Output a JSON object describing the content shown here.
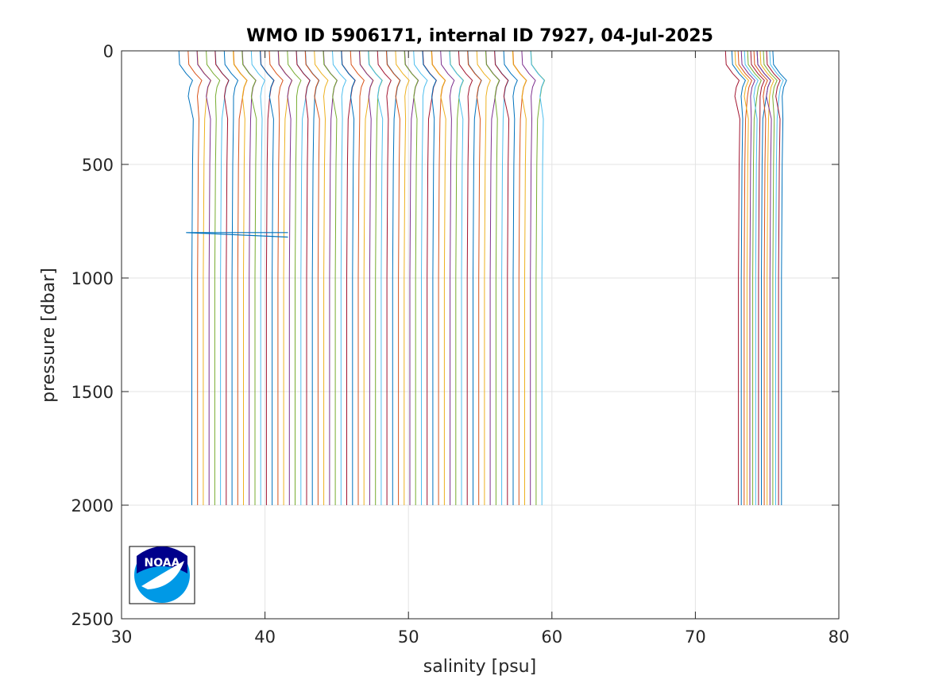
{
  "chart_data": {
    "type": "line",
    "title": "WMO ID 5906171, internal ID 7927, 04-Jul-2025",
    "xlabel": "salinity [psu]",
    "ylabel": "pressure [dbar]",
    "xlim": [
      30,
      80
    ],
    "ylim": [
      0,
      2500
    ],
    "y_reversed": true,
    "grid": true,
    "xticks": [
      30,
      40,
      50,
      60,
      70,
      80
    ],
    "yticks": [
      0,
      500,
      1000,
      1500,
      2000,
      2500
    ],
    "xtick_labels": [
      "30",
      "40",
      "50",
      "60",
      "70",
      "80"
    ],
    "ytick_labels": [
      "0",
      "500",
      "1000",
      "1500",
      "2000",
      "2500"
    ],
    "series_note": "waterfall of salinity profiles, each offset in salinity",
    "groups": [
      {
        "count": 62,
        "start_deep_salinity": 34.9,
        "step": 0.4,
        "max_pressure": 2000
      },
      {
        "count": 16,
        "start_deep_salinity": 73.0,
        "step": 0.2,
        "max_pressure": 2000
      }
    ],
    "representative_profile": {
      "pressure": [
        0,
        60,
        100,
        130,
        160,
        200,
        300,
        500,
        1000,
        1500,
        2000
      ],
      "salinity_anomaly": [
        -0.6,
        -0.55,
        -0.1,
        0.35,
        0.15,
        0.05,
        0.1,
        0.05,
        0.0,
        0.0,
        0.0
      ]
    },
    "spike": {
      "pressure": [
        800,
        820
      ],
      "salinity": [
        34.5,
        41.6
      ]
    },
    "colors": [
      "#0072bd",
      "#d95319",
      "#edb120",
      "#7e2f8e",
      "#77ac30",
      "#4dbeee",
      "#a2142f"
    ]
  },
  "logo": {
    "text": "NOAA",
    "colors": {
      "navy": "#00008b",
      "blue": "#0099e6"
    }
  }
}
